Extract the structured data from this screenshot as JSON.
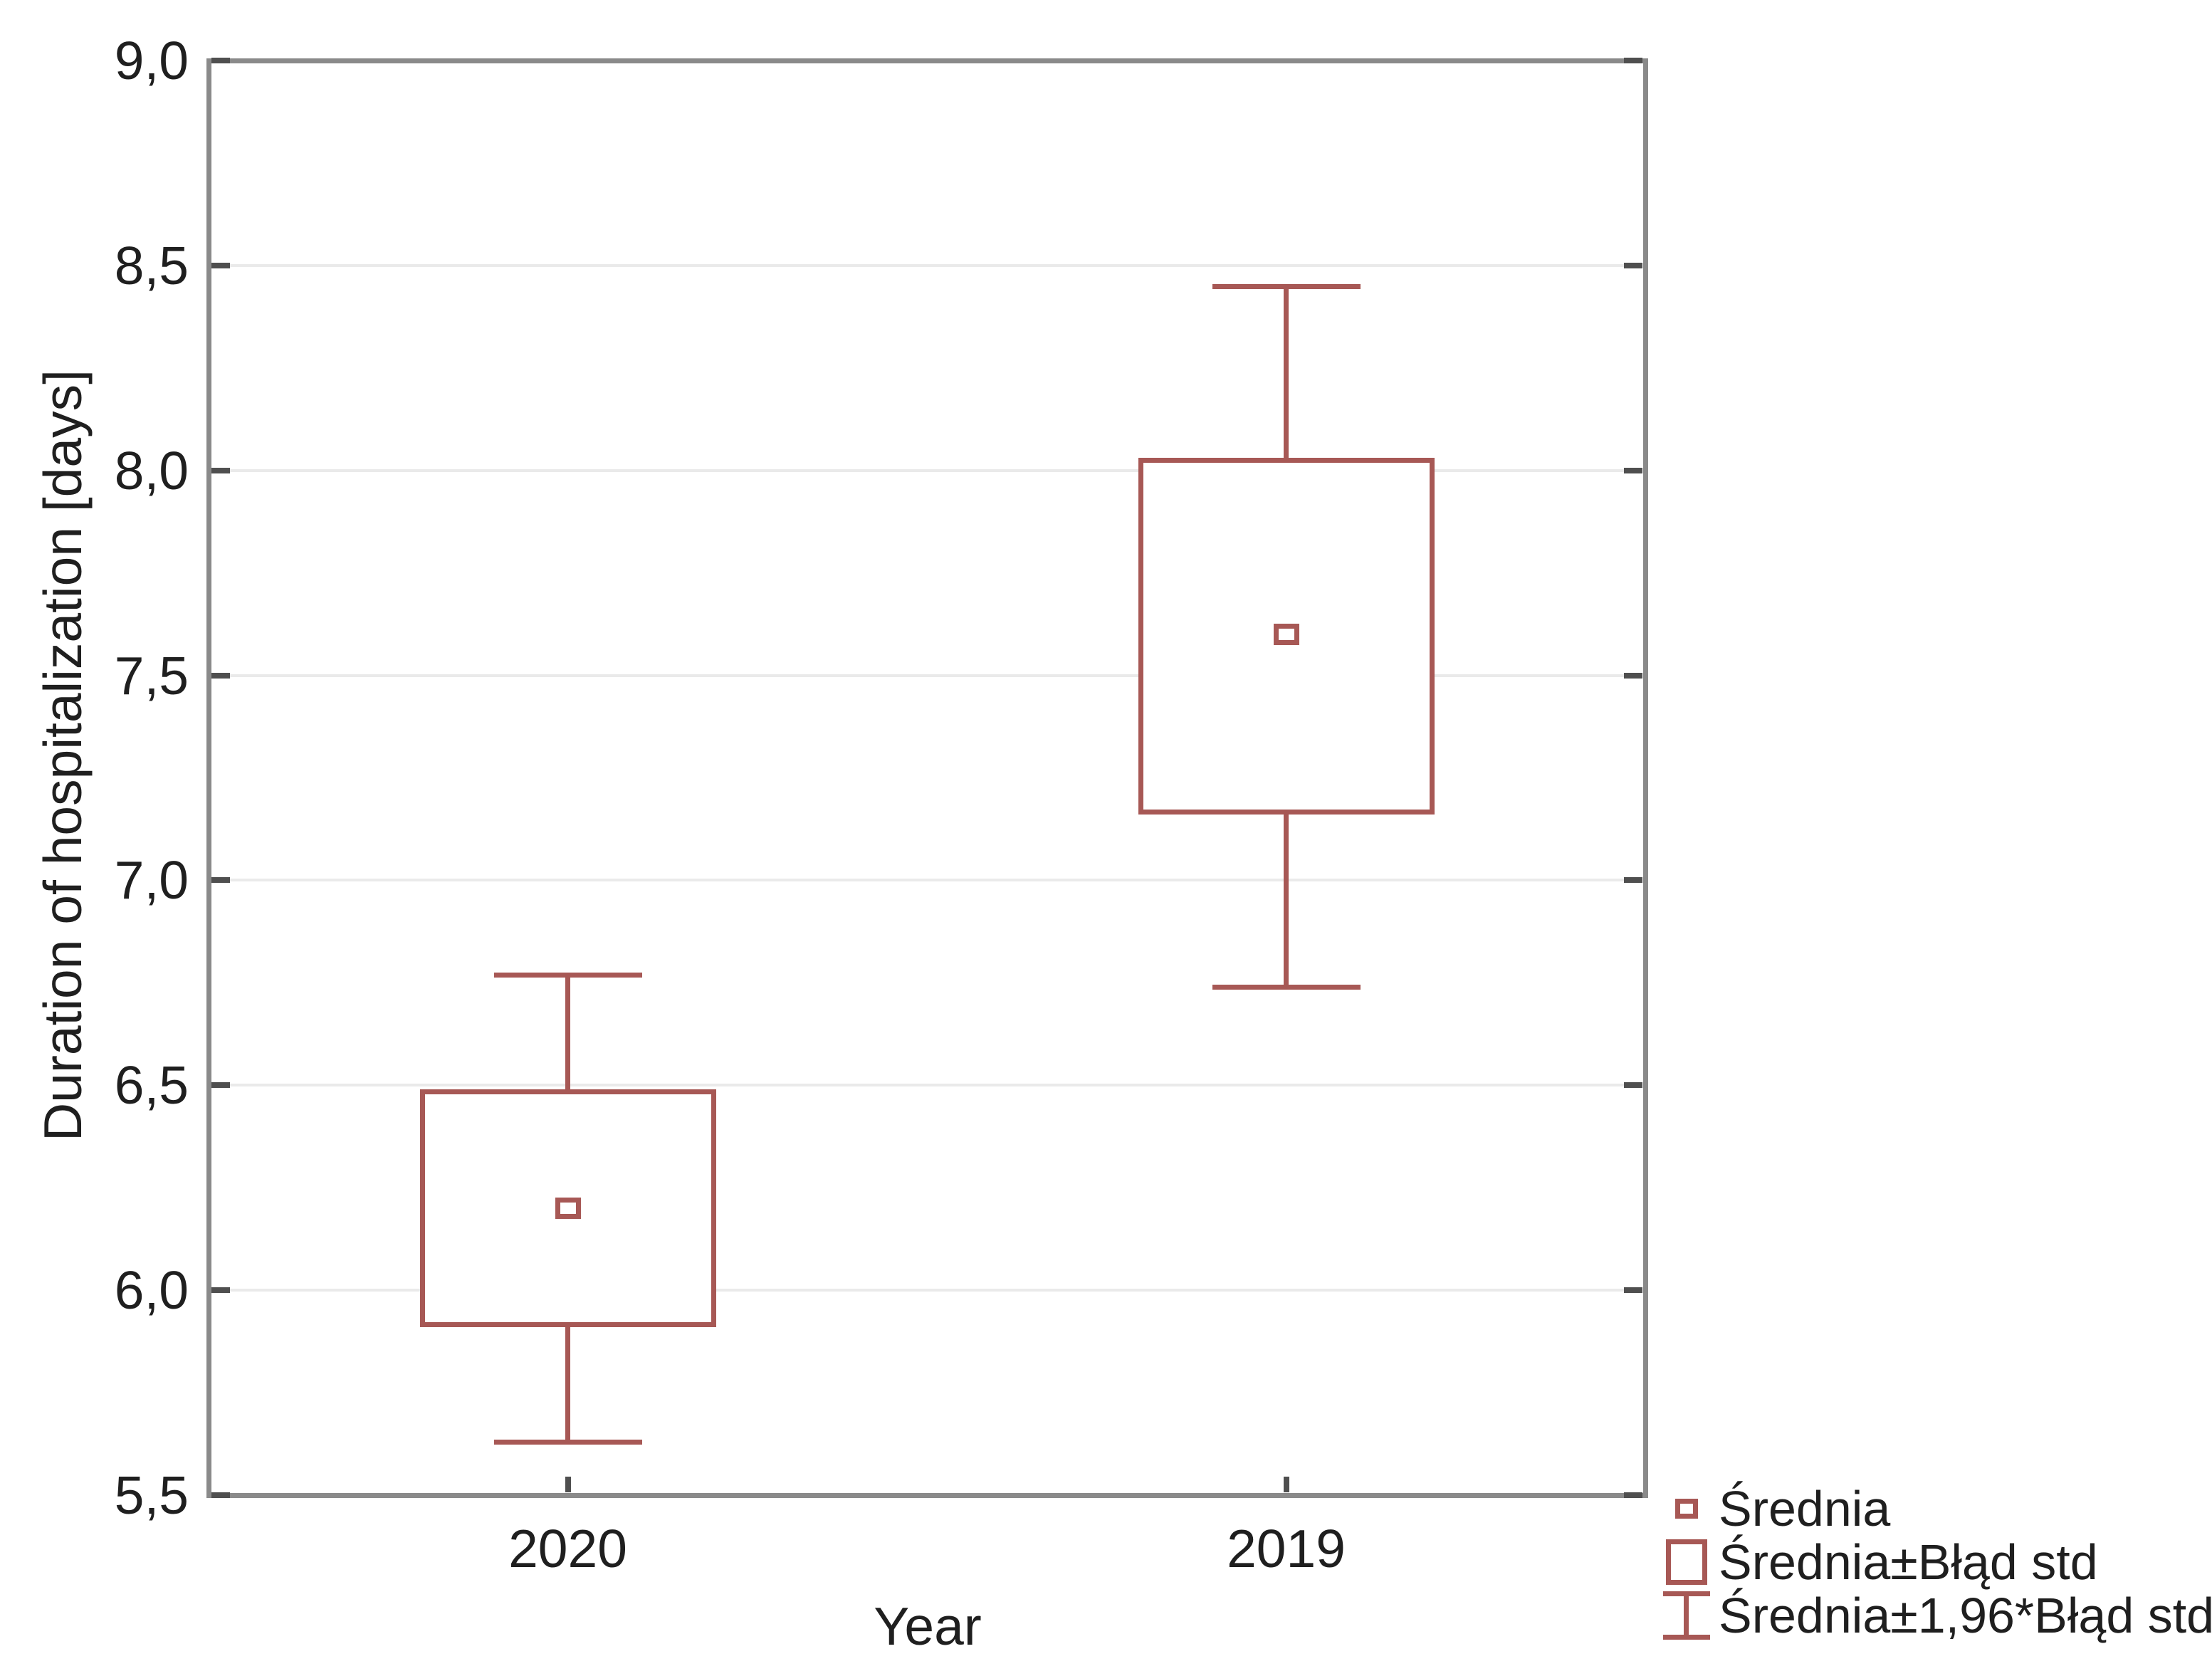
{
  "chart_data": {
    "type": "box",
    "title": "",
    "xlabel": "Year",
    "ylabel": "Duration of hospitalization [days]",
    "categories": [
      "2020",
      "2019"
    ],
    "series": [
      {
        "name": "2020",
        "mean": 6.2,
        "box_low": 5.91,
        "box_high": 6.49,
        "whisker_low": 5.63,
        "whisker_high": 6.77
      },
      {
        "name": "2019",
        "mean": 7.6,
        "box_low": 7.16,
        "box_high": 8.03,
        "whisker_low": 6.74,
        "whisker_high": 8.45
      }
    ],
    "ylim": [
      5.5,
      9.0
    ],
    "ytick_step": 0.5,
    "ytick_labels": [
      "5,5",
      "6,0",
      "6,5",
      "7,0",
      "7,5",
      "8,0",
      "8,5",
      "9,0"
    ],
    "grid": true,
    "legend": {
      "position": "bottom-right",
      "items": [
        {
          "marker": "mean-square",
          "label": "Średnia"
        },
        {
          "marker": "box",
          "label": "Średnia±Błąd std"
        },
        {
          "marker": "whisker",
          "label": "Średnia±1,96*Błąd std"
        }
      ]
    },
    "colors": {
      "series": "#a75855",
      "frame": "#8a8a8a",
      "tick": "#4f4f4f",
      "grid": "#eaeaea",
      "text": "#1f1f1f"
    }
  }
}
